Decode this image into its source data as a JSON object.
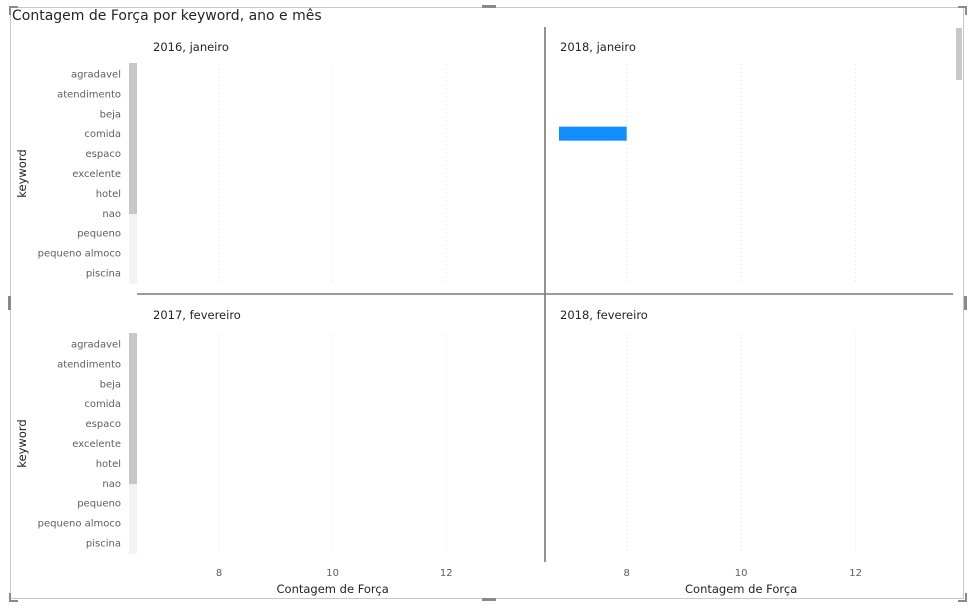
{
  "title": "Contagem de Força por keyword, ano e mês",
  "chart_data": {
    "type": "bar",
    "orientation": "horizontal",
    "layout": "small-multiples",
    "title": "Contagem de Força por keyword, ano e mês",
    "xlabel": "Contagem de Força",
    "ylabel": "keyword",
    "categories": [
      "agradavel",
      "atendimento",
      "beja",
      "comida",
      "espaco",
      "excelente",
      "hotel",
      "nao",
      "pequeno",
      "pequeno almoco",
      "piscina"
    ],
    "xlim": [
      6.8,
      13.3
    ],
    "x_ticks": [
      8,
      10,
      12
    ],
    "grid": true,
    "panels": [
      {
        "label": "2016, janeiro",
        "values": [
          null,
          null,
          null,
          null,
          null,
          null,
          null,
          null,
          null,
          null,
          null
        ]
      },
      {
        "label": "2018, janeiro",
        "values": [
          null,
          null,
          null,
          8,
          null,
          null,
          null,
          null,
          null,
          null,
          null
        ]
      },
      {
        "label": "2017, fevereiro",
        "values": [
          null,
          null,
          null,
          null,
          null,
          null,
          null,
          null,
          null,
          null,
          null
        ]
      },
      {
        "label": "2018, fevereiro",
        "values": [
          null,
          null,
          null,
          null,
          null,
          null,
          null,
          null,
          null,
          null,
          null
        ]
      }
    ],
    "bar_color": "#118DFF"
  }
}
